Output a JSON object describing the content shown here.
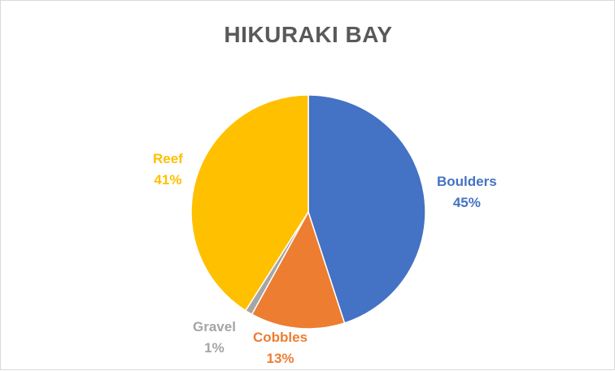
{
  "chart_data": {
    "type": "pie",
    "title": "HIKURAKI BAY",
    "slices": [
      {
        "name": "Boulders",
        "value": 45,
        "label": "45%",
        "color": "#4472C4"
      },
      {
        "name": "Cobbles",
        "value": 13,
        "label": "13%",
        "color": "#ED7D31"
      },
      {
        "name": "Gravel",
        "value": 1,
        "label": "1%",
        "color": "#A5A5A5"
      },
      {
        "name": "Reef",
        "value": 41,
        "label": "41%",
        "color": "#FFC000"
      }
    ],
    "legend": "none",
    "start_angle": "12 o'clock, clockwise"
  }
}
